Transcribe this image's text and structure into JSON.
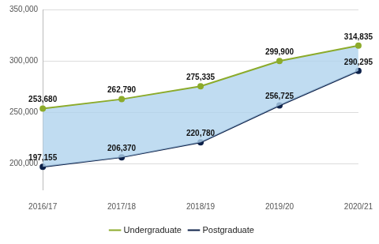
{
  "chart_data": {
    "type": "line",
    "categories": [
      "2016/17",
      "2017/18",
      "2018/19",
      "2019/20",
      "2020/21"
    ],
    "series": [
      {
        "name": "Undergraduate",
        "color": "#8cab2b",
        "marker": "circle",
        "values": [
          253680,
          262790,
          275335,
          299900,
          314835
        ],
        "value_labels": [
          "253,680",
          "262,790",
          "275,335",
          "299,900",
          "314,835"
        ]
      },
      {
        "name": "Postgraduate",
        "color": "#0d2149",
        "marker": "circle",
        "values": [
          197155,
          206370,
          220780,
          256725,
          290295
        ],
        "value_labels": [
          "197,155",
          "206,370",
          "220,780",
          "256,725",
          "290,295"
        ]
      }
    ],
    "ylim": [
      175000,
      350000
    ],
    "yticks": [
      {
        "value": 200000,
        "label": "200,000"
      },
      {
        "value": 250000,
        "label": "250,000"
      },
      {
        "value": 300000,
        "label": "300,000"
      },
      {
        "value": 350000,
        "label": "350,000"
      }
    ],
    "grid": true,
    "legend": "bottom",
    "data_labels": true
  }
}
